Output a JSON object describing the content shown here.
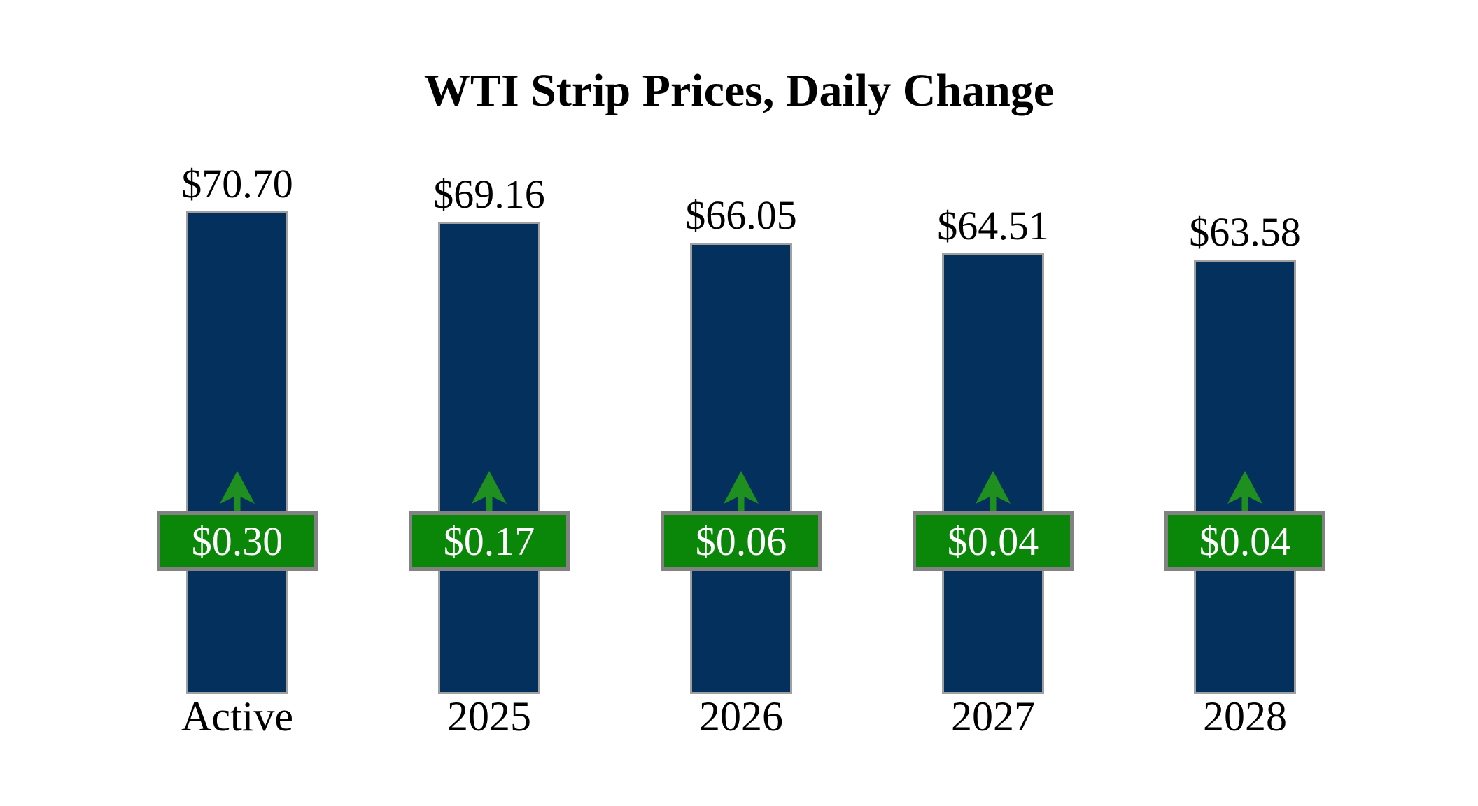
{
  "chart_data": {
    "type": "bar",
    "title": "WTI Strip Prices, Daily Change",
    "categories": [
      "Active",
      "2025",
      "2026",
      "2027",
      "2028"
    ],
    "series": [
      {
        "name": "strip_price",
        "labels": [
          "$70.70",
          "$69.16",
          "$66.05",
          "$64.51",
          "$63.58"
        ],
        "values": [
          70.7,
          69.16,
          66.05,
          64.51,
          63.58
        ]
      },
      {
        "name": "daily_change",
        "labels": [
          "$0.30",
          "$0.17",
          "$0.06",
          "$0.04",
          "$0.04"
        ],
        "values": [
          0.3,
          0.17,
          0.06,
          0.04,
          0.04
        ],
        "direction": "up"
      }
    ],
    "ylim": [
      0,
      70.7
    ],
    "grid": false,
    "legend_position": "none",
    "colors": {
      "background": "#ffffff",
      "bar_fill": "#04305e",
      "bar_border": "#a0a0a0",
      "badge_fill": "#0a8609",
      "badge_border": "#828282",
      "badge_text": "#ffffff",
      "arrow": "#1f8f1f",
      "label_text": "#000000"
    }
  }
}
